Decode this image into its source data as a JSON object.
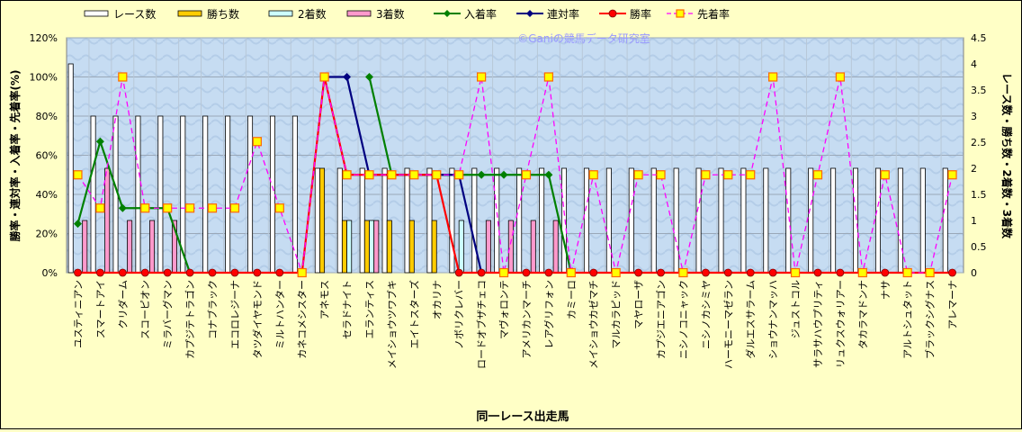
{
  "chart_data": {
    "type": "bar",
    "title": "",
    "watermark": "©Ganiの競馬データ研究室",
    "xlabel": "同一レース出走馬",
    "ylabel_left": "勝率・連対率・入着率・先着率(%)",
    "ylabel_right": "レース数・勝ち数・2着数・3着数",
    "ylim_left": [
      0,
      120
    ],
    "ylim_right": [
      0,
      4.5
    ],
    "yticks_left": [
      "0%",
      "20%",
      "40%",
      "60%",
      "80%",
      "100%",
      "120%"
    ],
    "yticks_right": [
      "0",
      "0.5",
      "1",
      "1.5",
      "2",
      "2.5",
      "3",
      "3.5",
      "4",
      "4.5"
    ],
    "grid": true,
    "legend_position": "top",
    "categories": [
      "ユスティニアン",
      "スマートアイ",
      "クリダーム",
      "スコーピオン",
      "ミラバーグマン",
      "カプジテトラゴン",
      "コナブラック",
      "エコロレジーナ",
      "タツダイヤモンド",
      "ミルトハンター",
      "カネコメシスター",
      "アネモス",
      "セラドナイト",
      "エランティス",
      "メイショウツワブキ",
      "エイトスターズ",
      "オカリナ",
      "ノボリクレバー",
      "ロードオブザチェコ",
      "マヴォロンテ",
      "アメリカンマーチ",
      "レアグリフォン",
      "カミーロ",
      "メイショウカゼマチ",
      "マルカラピッド",
      "マヤローザ",
      "カプジエニアゴン",
      "ニシノコニャック",
      "ニシノカシミヤ",
      "ハーモニーマゼラン",
      "ダルエスサラーム",
      "ショウナンマッハ",
      "ジュストコル",
      "サラサハウプリティ",
      "リュクスウォリアー",
      "タカラマドンナ",
      "ナサ",
      "アルトシュタット",
      "ブラックシグナス",
      "アレマーナ"
    ],
    "series": [
      {
        "name": "レース数",
        "kind": "bar",
        "axis": "right",
        "color": "#FFFFFF",
        "values": [
          4,
          3,
          3,
          3,
          3,
          3,
          3,
          3,
          3,
          3,
          3,
          2,
          2,
          2,
          2,
          2,
          2,
          2,
          2,
          2,
          2,
          2,
          2,
          2,
          2,
          2,
          2,
          2,
          2,
          2,
          2,
          2,
          2,
          2,
          2,
          2,
          2,
          2,
          2,
          2
        ]
      },
      {
        "name": "勝ち数",
        "kind": "bar",
        "axis": "right",
        "color": "#FFCC00",
        "values": [
          0,
          0,
          0,
          0,
          0,
          0,
          0,
          0,
          0,
          0,
          0,
          2,
          1,
          1,
          1,
          1,
          1,
          0,
          0,
          0,
          0,
          0,
          0,
          0,
          0,
          0,
          0,
          0,
          0,
          0,
          0,
          0,
          0,
          0,
          0,
          0,
          0,
          0,
          0,
          0
        ]
      },
      {
        "name": "2着数",
        "kind": "bar",
        "axis": "right",
        "color": "#CCFFFF",
        "values": [
          0,
          0,
          0,
          0,
          0,
          0,
          0,
          0,
          0,
          0,
          0,
          0,
          1,
          1,
          0,
          0,
          0,
          1,
          0,
          0,
          0,
          0,
          0,
          0,
          0,
          0,
          0,
          0,
          0,
          0,
          0,
          0,
          0,
          0,
          0,
          0,
          0,
          0,
          0,
          0
        ]
      },
      {
        "name": "3着数",
        "kind": "bar",
        "axis": "right",
        "color": "#FF99CC",
        "values": [
          1,
          2,
          1,
          1,
          1,
          0,
          0,
          0,
          0,
          0,
          0,
          0,
          0,
          1,
          0,
          0,
          0,
          0,
          1,
          1,
          1,
          1,
          0,
          0,
          0,
          0,
          0,
          0,
          0,
          0,
          0,
          0,
          0,
          0,
          0,
          0,
          0,
          0,
          0,
          0
        ]
      },
      {
        "name": "入着率",
        "kind": "line",
        "axis": "left",
        "color": "#008000",
        "marker": "diamond",
        "values": [
          25,
          67,
          33,
          33,
          33,
          0,
          null,
          null,
          null,
          null,
          null,
          null,
          null,
          100,
          50,
          50,
          50,
          50,
          50,
          50,
          50,
          50,
          0,
          null,
          null,
          null,
          null,
          null,
          null,
          null,
          null,
          null,
          null,
          null,
          null,
          null,
          null,
          null,
          null,
          null
        ]
      },
      {
        "name": "連対率",
        "kind": "line",
        "axis": "left",
        "color": "#000080",
        "marker": "diamond",
        "values": [
          null,
          null,
          null,
          null,
          null,
          null,
          null,
          null,
          null,
          null,
          null,
          100,
          100,
          50,
          50,
          50,
          50,
          50,
          0,
          null,
          null,
          null,
          null,
          null,
          null,
          null,
          null,
          null,
          null,
          null,
          null,
          null,
          null,
          null,
          null,
          null,
          null,
          null,
          null,
          null
        ]
      },
      {
        "name": "勝率",
        "kind": "line",
        "axis": "left",
        "color": "#FF0000",
        "marker": "circle",
        "values": [
          0,
          0,
          0,
          0,
          0,
          0,
          0,
          0,
          0,
          0,
          0,
          100,
          50,
          50,
          50,
          50,
          50,
          0,
          0,
          0,
          0,
          0,
          0,
          0,
          0,
          0,
          0,
          0,
          0,
          0,
          0,
          0,
          0,
          0,
          0,
          0,
          0,
          0,
          0,
          0
        ]
      },
      {
        "name": "先着率",
        "kind": "line",
        "axis": "left",
        "color": "#FF00FF",
        "dashed": true,
        "marker": "square",
        "marker_fill": "#FFFF00",
        "values": [
          50,
          33,
          100,
          33,
          33,
          33,
          33,
          33,
          67,
          33,
          0,
          100,
          50,
          50,
          50,
          50,
          50,
          50,
          100,
          0,
          50,
          100,
          0,
          50,
          0,
          50,
          50,
          0,
          50,
          50,
          50,
          100,
          0,
          50,
          100,
          0,
          50,
          0,
          0,
          50
        ]
      }
    ]
  }
}
